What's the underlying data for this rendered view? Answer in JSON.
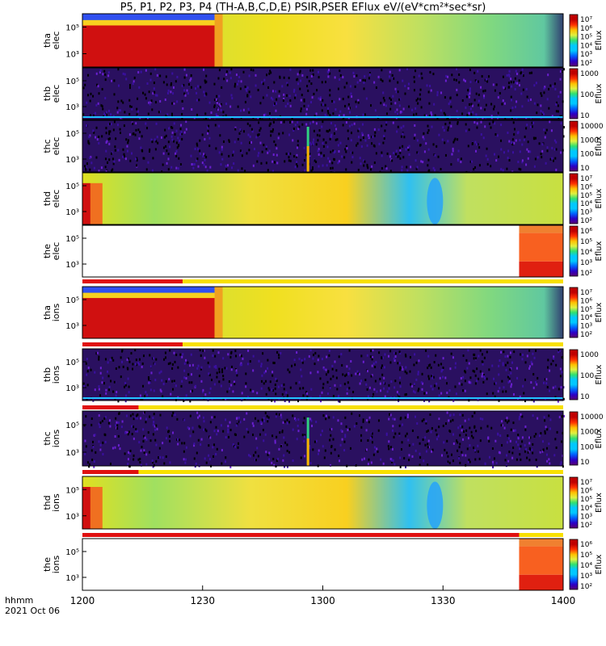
{
  "title": "P5, P1, P2, P3, P4 (TH-A,B,C,D,E) PSIR,PSER EFlux eV/(eV*cm²*sec*sr)",
  "chart_data": {
    "type": "heatmap",
    "x_axis": {
      "ticks": [
        "1200",
        "1230",
        "1300",
        "1330",
        "1400"
      ],
      "tick_minutes": [
        0,
        30,
        60,
        90,
        120
      ],
      "range_minutes": [
        0,
        120
      ],
      "label_line1": "hhmm",
      "label_line2": "2021 Oct 06"
    },
    "colorbar_title": "Eflux",
    "panels": [
      {
        "probe": "tha",
        "species": "elec",
        "y_ticks": [
          "10⁵",
          "10³"
        ],
        "colorbar_ticks": [
          "10⁷",
          "10⁶",
          "10⁵",
          "10⁴",
          "10³",
          "10²"
        ],
        "style": "warm_start"
      },
      {
        "probe": "thb",
        "species": "elec",
        "y_ticks": [
          "10⁵",
          "10³"
        ],
        "colorbar_ticks": [
          "1000",
          "100",
          "10"
        ],
        "style": "noise"
      },
      {
        "probe": "thc",
        "species": "elec",
        "y_ticks": [
          "10⁵",
          "10³"
        ],
        "colorbar_ticks": [
          "10000",
          "1000",
          "100",
          "10"
        ],
        "style": "noise_spike"
      },
      {
        "probe": "thd",
        "species": "elec",
        "y_ticks": [
          "10⁵",
          "10³"
        ],
        "colorbar_ticks": [
          "10⁷",
          "10⁶",
          "10⁵",
          "10⁴",
          "10³",
          "10²"
        ],
        "style": "warm_mid"
      },
      {
        "probe": "the",
        "species": "elec",
        "y_ticks": [
          "10⁵",
          "10³"
        ],
        "colorbar_ticks": [
          "10⁶",
          "10⁵",
          "10⁴",
          "10³",
          "10²"
        ],
        "style": "late_only"
      },
      {
        "probe": "tha",
        "species": "ions",
        "y_ticks": [
          "10⁵",
          "10³"
        ],
        "colorbar_ticks": [
          "10⁷",
          "10⁶",
          "10⁵",
          "10⁴",
          "10³",
          "10²"
        ],
        "style": "warm_start"
      },
      {
        "probe": "thb",
        "species": "ions",
        "y_ticks": [
          "10⁵",
          "10³"
        ],
        "colorbar_ticks": [
          "1000",
          "100",
          "10"
        ],
        "style": "noise"
      },
      {
        "probe": "thc",
        "species": "ions",
        "y_ticks": [
          "10⁵",
          "10³"
        ],
        "colorbar_ticks": [
          "10000",
          "1000",
          "100",
          "10"
        ],
        "style": "noise_spike"
      },
      {
        "probe": "thd",
        "species": "ions",
        "y_ticks": [
          "10⁵",
          "10³"
        ],
        "colorbar_ticks": [
          "10⁷",
          "10⁶",
          "10⁵",
          "10⁴",
          "10³",
          "10²"
        ],
        "style": "warm_mid"
      },
      {
        "probe": "the",
        "species": "ions",
        "y_ticks": [
          "10⁵",
          "10³"
        ],
        "colorbar_ticks": [
          "10⁶",
          "10⁵",
          "10⁴",
          "10³",
          "10²"
        ],
        "style": "late_only"
      }
    ]
  }
}
